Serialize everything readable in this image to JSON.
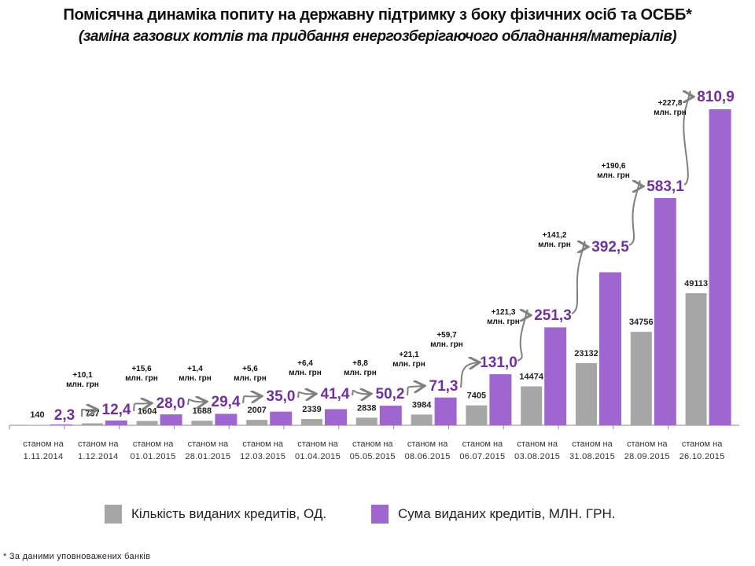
{
  "chart_data": {
    "type": "bar",
    "title": "Помісячна динаміка попиту на державну підтримку з боку фізичних осіб та ОСББ*",
    "subtitle": "(заміна газових котлів  та  придбання енергозберігаючого обладнання/матеріалів)",
    "categories": [
      [
        "станом на",
        "1.11.2014"
      ],
      [
        "станом на",
        "1.12.2014"
      ],
      [
        "станом на",
        "01.01.2015"
      ],
      [
        "станом на",
        "28.01.2015"
      ],
      [
        "станом на",
        "12.03.2015"
      ],
      [
        "станом на",
        "01.04.2015"
      ],
      [
        "станом на",
        "05.05.2015"
      ],
      [
        "станом на",
        "08.06.2015"
      ],
      [
        "станом на",
        "06.07.2015"
      ],
      [
        "станом на",
        "03.08.2015"
      ],
      [
        "станом на",
        "31.08.2015"
      ],
      [
        "станом на",
        "28.09.2015"
      ],
      [
        "станом на",
        "26.10.2015"
      ]
    ],
    "series": [
      {
        "name": "Кількість виданих кредитів, ОД.",
        "color": "#a6a6a6",
        "axis": "primary",
        "values": [
          140,
          737,
          1604,
          1688,
          2007,
          2339,
          2838,
          3984,
          7405,
          14474,
          23132,
          34756,
          49113
        ],
        "labels": [
          "140",
          "737",
          "1604",
          "1688",
          "2007",
          "2339",
          "2838",
          "3984",
          "7405",
          "14474",
          "23132",
          "34756",
          "49113"
        ]
      },
      {
        "name": "Сума виданих кредитів, МЛН. ГРН.",
        "color": "#a066d0",
        "label_color": "#7030a0",
        "axis": "secondary",
        "values": [
          2.3,
          12.4,
          28.0,
          29.4,
          35.0,
          41.4,
          50.2,
          71.3,
          131.0,
          251.3,
          392.5,
          583.1,
          810.9
        ],
        "labels": [
          "2,3",
          "12,4",
          "28,0",
          "29,4",
          "35,0",
          "41,4",
          "50,2",
          "71,3",
          "131,0",
          "251,3",
          "392,5",
          "583,1",
          "810,9"
        ]
      }
    ],
    "increments": [
      [
        "+10,1",
        "млн. грн"
      ],
      [
        "+15,6",
        "млн. грн"
      ],
      [
        "+1,4",
        "млн. грн"
      ],
      [
        "+5,6",
        "млн. грн"
      ],
      [
        "+6,4",
        "млн. грн"
      ],
      [
        "+8,8",
        "млн. грн"
      ],
      [
        "+21,1",
        "млн. грн"
      ],
      [
        "+59,7",
        "млн. грн"
      ],
      [
        "+121,3",
        "млн. грн"
      ],
      [
        "+141,2",
        "млн. грн"
      ],
      [
        "+190,6",
        "млн. грн"
      ],
      [
        "+227,8",
        "млн. грн"
      ]
    ],
    "axes_visible": false,
    "grid": false,
    "legend_position": "bottom"
  },
  "footnote": "* За даними уповноважених банків"
}
